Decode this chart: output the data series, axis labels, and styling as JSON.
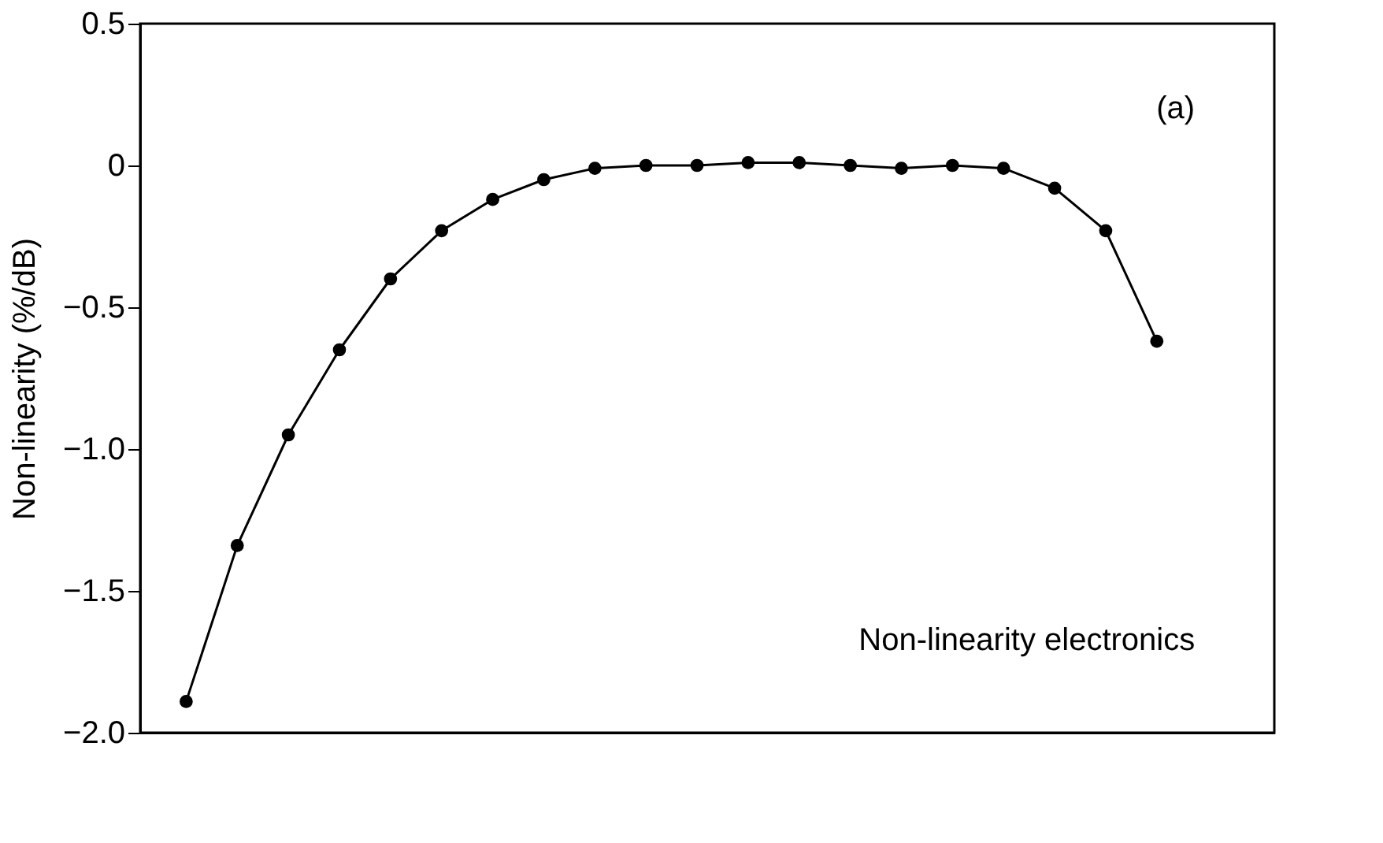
{
  "chart_data": {
    "type": "line",
    "ylabel": "Non-linearity   (%/dB)",
    "categories": [
      null,
      null,
      null,
      null,
      null,
      null,
      null,
      null,
      null,
      null,
      null,
      null,
      null,
      null,
      null,
      null,
      null,
      null,
      null,
      null
    ],
    "values": [
      -1.89,
      -1.34,
      -0.95,
      -0.65,
      -0.4,
      -0.23,
      -0.12,
      -0.05,
      -0.01,
      0.0,
      0.0,
      0.01,
      0.01,
      0.0,
      -0.01,
      0.0,
      -0.01,
      -0.08,
      -0.23,
      -0.62
    ],
    "color": "#000000",
    "marker": "circle",
    "line_style": "solid",
    "grid": false,
    "tick_labels": "y",
    "ylim": [
      -2.0,
      0.5
    ],
    "yticks": [
      0.5,
      0,
      {
        "value": -0.5,
        "label": "−0.5"
      },
      {
        "value": -1.0,
        "label": "−1.0"
      },
      {
        "value": -1.5,
        "label": "−1.5"
      },
      {
        "value": -2.0,
        "label": "−2.0"
      }
    ],
    "annotations": [
      "(a)",
      "Non-linearity electronics"
    ]
  }
}
